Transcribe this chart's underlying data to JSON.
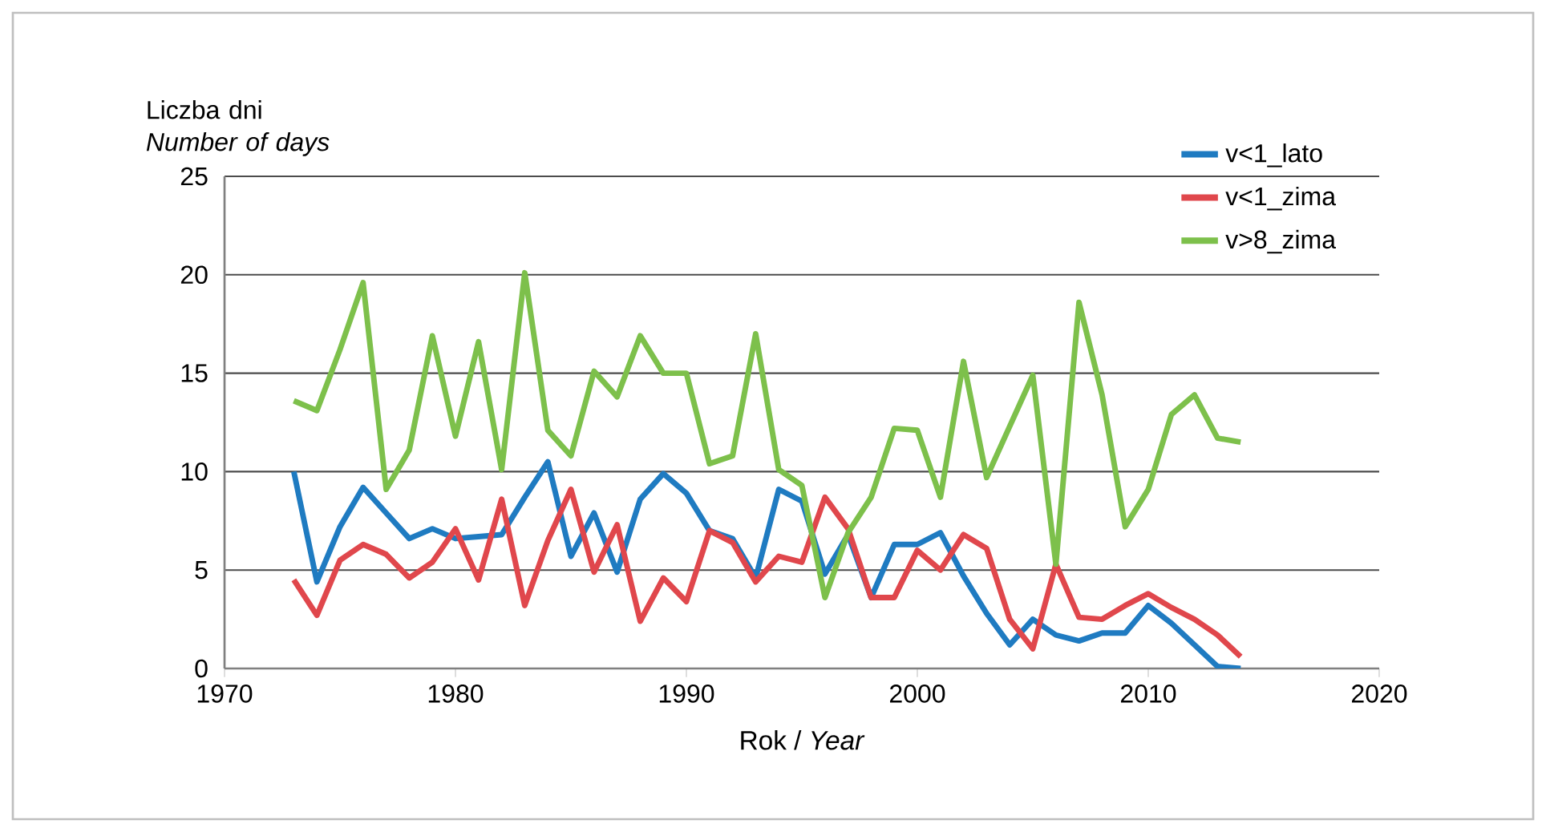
{
  "chart_data": {
    "type": "line",
    "xlabel": "Rok  / *Year*",
    "ylabel": "Liczba dni *Number of days*",
    "x": [
      1973,
      1974,
      1975,
      1976,
      1977,
      1978,
      1979,
      1980,
      1981,
      1982,
      1983,
      1984,
      1985,
      1986,
      1987,
      1988,
      1989,
      1990,
      1991,
      1992,
      1993,
      1994,
      1995,
      1996,
      1997,
      1998,
      1999,
      2000,
      2001,
      2002,
      2003,
      2004,
      2005,
      2006,
      2007,
      2008,
      2009,
      2010,
      2011,
      2012,
      2013,
      2014
    ],
    "series": [
      {
        "name": "v<1_lato",
        "color": "#1f7bc1",
        "values": [
          10,
          4.4,
          7.2,
          9.2,
          7.9,
          6.6,
          7.1,
          6.6,
          6.7,
          6.8,
          8.7,
          10.5,
          5.7,
          7.9,
          4.9,
          8.6,
          9.9,
          8.9,
          7.0,
          6.6,
          4.6,
          9.1,
          8.5,
          4.8,
          6.8,
          3.6,
          6.3,
          6.3,
          6.9,
          4.7,
          2.8,
          1.2,
          2.5,
          1.7,
          1.4,
          1.8,
          1.8,
          3.2,
          2.3,
          1.2,
          0.1,
          0.0
        ]
      },
      {
        "name": "v<1_zima",
        "color": "#e0474c",
        "values": [
          4.5,
          2.7,
          5.5,
          6.3,
          5.8,
          4.6,
          5.4,
          7.1,
          4.5,
          8.6,
          3.2,
          6.5,
          9.1,
          4.9,
          7.3,
          2.4,
          4.6,
          3.4,
          7.0,
          6.4,
          4.4,
          5.7,
          5.4,
          8.7,
          7.1,
          3.6,
          3.6,
          6.0,
          5.0,
          6.8,
          6.1,
          2.5,
          1.0,
          5.3,
          2.6,
          2.5,
          3.2,
          3.8,
          3.1,
          2.5,
          1.7,
          0.6
        ]
      },
      {
        "name": "v>8_zima",
        "color": "#7dc04b",
        "values": [
          13.6,
          13.1,
          16.2,
          19.6,
          9.1,
          11.1,
          16.9,
          11.8,
          16.6,
          10.1,
          20.1,
          12.1,
          10.8,
          15.1,
          13.8,
          16.9,
          15.0,
          15.0,
          10.4,
          10.8,
          17.0,
          10.1,
          9.3,
          3.6,
          6.9,
          8.7,
          12.2,
          12.1,
          8.7,
          15.6,
          9.7,
          12.3,
          14.9,
          5.3,
          18.6,
          13.9,
          7.2,
          9.1,
          12.9,
          13.9,
          11.7,
          11.5
        ]
      }
    ],
    "xlim": [
      1970,
      2020
    ],
    "xticks": [
      1970,
      1980,
      1990,
      2000,
      2010,
      2020
    ],
    "ylim": [
      0,
      25
    ],
    "yticks": [
      0,
      5,
      10,
      15,
      20,
      25
    ],
    "grid": "y",
    "legend": "top right",
    "marker": "none",
    "line_style": "solid"
  }
}
